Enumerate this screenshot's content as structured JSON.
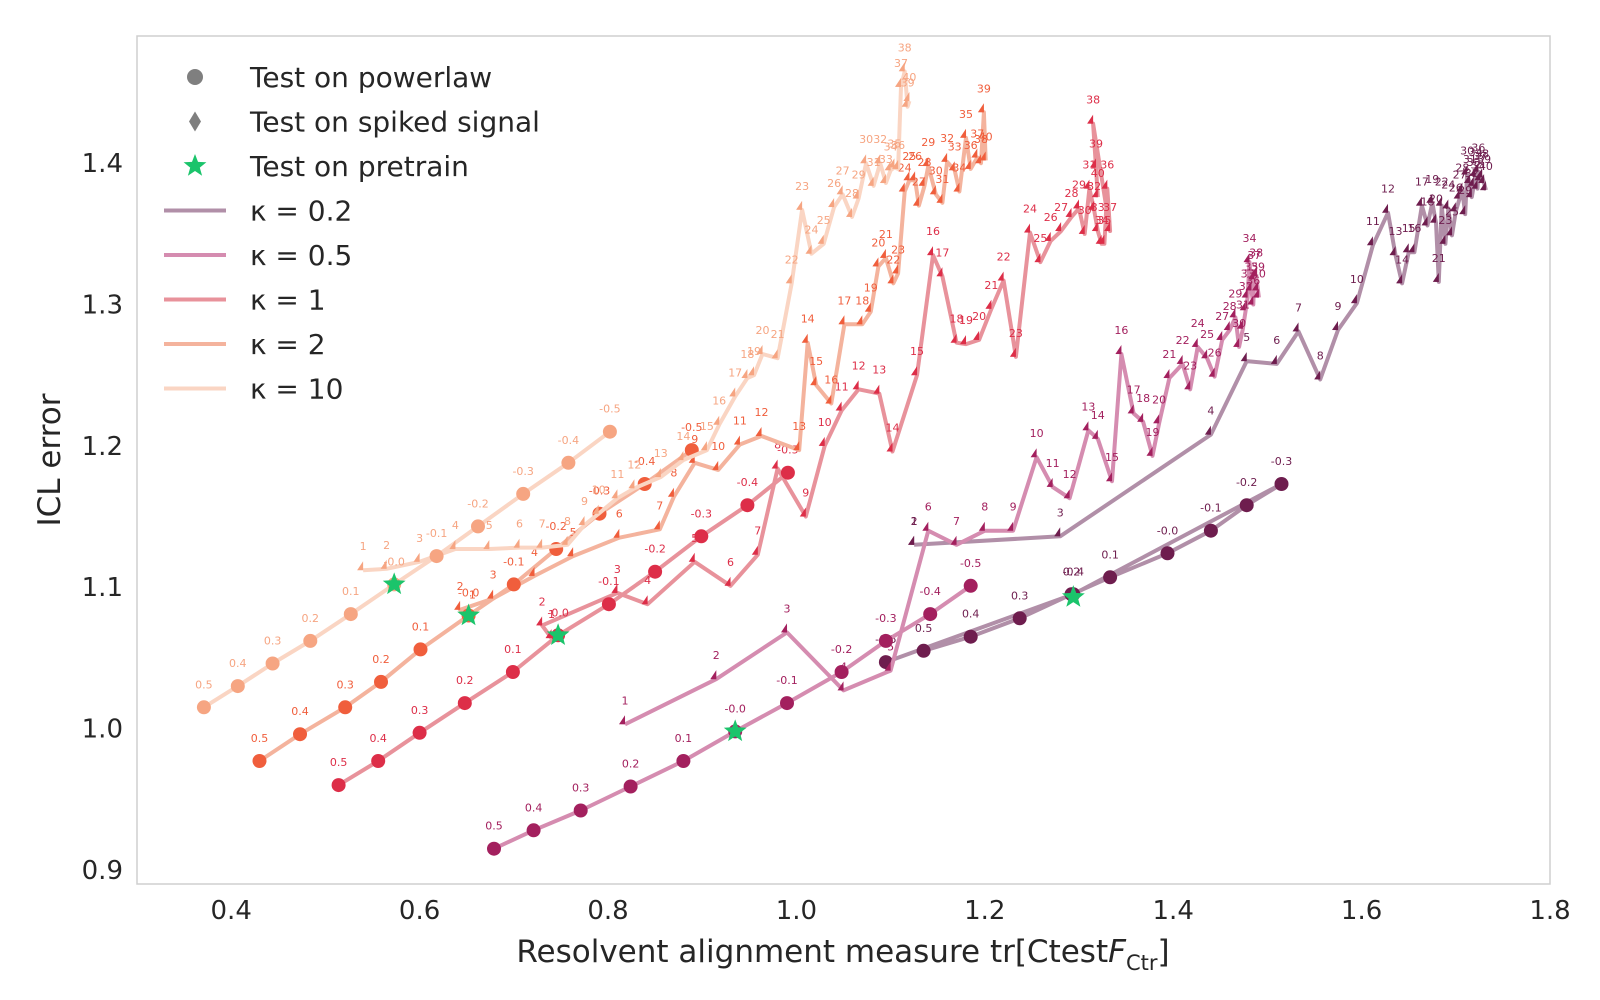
{
  "chart_data": {
    "type": "line",
    "title": "",
    "xlabel": "Resolvent alignment measure tr[Ctest",
    "xlabel_symbol": "F",
    "xlabel_subscript": "Ctr",
    "xlabel_close": "]",
    "ylabel": "ICL error",
    "xlim": [
      0.3,
      1.8
    ],
    "ylim": [
      0.89,
      1.49
    ],
    "xticks": [
      0.4,
      0.6,
      0.8,
      1.0,
      1.2,
      1.4,
      1.6,
      1.8
    ],
    "xtick_labels": [
      "0.4",
      "0.6",
      "0.8",
      "1.0",
      "1.2",
      "1.4",
      "1.6",
      "1.8"
    ],
    "yticks": [
      0.9,
      1.0,
      1.1,
      1.2,
      1.3,
      1.4
    ],
    "ytick_labels": [
      "0.9",
      "1.0",
      "1.1",
      "1.2",
      "1.3",
      "1.4"
    ],
    "grid": false,
    "legend_position": "top-left",
    "legend": [
      {
        "label": "Test on powerlaw",
        "marker": "circle",
        "color": "#7f7f7f"
      },
      {
        "label": "Test on spiked signal",
        "marker": "diamond",
        "color": "#7f7f7f"
      },
      {
        "label": "Test on pretrain",
        "marker": "star",
        "color": "#1bc46b"
      },
      {
        "label": "κ =  0.2",
        "marker": "line",
        "color": "#b18fa8"
      },
      {
        "label": "κ =  0.5",
        "marker": "line",
        "color": "#d58cb0"
      },
      {
        "label": "κ =  1",
        "marker": "line",
        "color": "#e8929b"
      },
      {
        "label": "κ =  2",
        "marker": "line",
        "color": "#f4b39d"
      },
      {
        "label": "κ =  10",
        "marker": "line",
        "color": "#fad5c3"
      }
    ],
    "series": [
      {
        "name": "κ =  0.2",
        "color": "#6e1d4e",
        "line_color": "#b18fa8",
        "label_color": "#6e1d4e",
        "powerlaw": {
          "labels": [
            "0.5",
            "0.4",
            "0.3",
            "0.2",
            "0.1",
            "-0.0",
            "-0.1",
            "-0.2",
            "-0.3",
            "-0.4",
            "-0.5"
          ],
          "x": [
            1.135,
            1.185,
            1.237,
            1.292,
            1.333,
            1.394,
            1.44,
            1.478,
            1.515,
            1.294,
            1.095
          ],
          "y": [
            1.055,
            1.065,
            1.078,
            1.095,
            1.107,
            1.124,
            1.14,
            1.158,
            1.173,
            1.095,
            1.047
          ]
        },
        "spiked": {
          "labels": [
            "1",
            "2",
            "3",
            "4",
            "5",
            "6",
            "7",
            "8",
            "9",
            "10",
            "11",
            "12",
            "13",
            "14",
            "15",
            "16",
            "17",
            "18",
            "19",
            "20",
            "21",
            "22",
            "23",
            "24",
            "25",
            "26",
            "27",
            "28",
            "29",
            "30",
            "31",
            "32",
            "33",
            "34",
            "35",
            "36",
            "37",
            "38",
            "39",
            "40"
          ],
          "x": [
            1.125,
            1.125,
            1.28,
            1.44,
            1.478,
            1.51,
            1.533,
            1.556,
            1.575,
            1.595,
            1.612,
            1.628,
            1.636,
            1.643,
            1.65,
            1.656,
            1.664,
            1.67,
            1.675,
            1.679,
            1.682,
            1.685,
            1.689,
            1.692,
            1.696,
            1.7,
            1.704,
            1.707,
            1.71,
            1.712,
            1.715,
            1.717,
            1.719,
            1.721,
            1.723,
            1.724,
            1.726,
            1.728,
            1.73,
            1.732
          ],
          "y": [
            1.13,
            1.13,
            1.136,
            1.208,
            1.26,
            1.258,
            1.281,
            1.247,
            1.282,
            1.301,
            1.342,
            1.365,
            1.335,
            1.315,
            1.337,
            1.337,
            1.37,
            1.356,
            1.372,
            1.358,
            1.316,
            1.37,
            1.343,
            1.368,
            1.349,
            1.366,
            1.375,
            1.38,
            1.364,
            1.392,
            1.386,
            1.376,
            1.384,
            1.391,
            1.382,
            1.394,
            1.388,
            1.39,
            1.386,
            1.381
          ]
        }
      },
      {
        "name": "κ =  0.5",
        "color": "#a3205e",
        "line_color": "#d58cb0",
        "label_color": "#a3205e",
        "powerlaw": {
          "labels": [
            "0.5",
            "0.4",
            "0.3",
            "0.2",
            "0.1",
            "-0.0",
            "-0.1",
            "-0.2",
            "-0.3",
            "-0.4",
            "-0.5"
          ],
          "x": [
            0.679,
            0.721,
            0.771,
            0.824,
            0.88,
            0.935,
            0.99,
            1.048,
            1.095,
            1.142,
            1.185
          ],
          "y": [
            0.915,
            0.928,
            0.942,
            0.959,
            0.977,
            0.998,
            1.018,
            1.04,
            1.062,
            1.081,
            1.101
          ]
        },
        "spiked": {
          "labels": [
            "1",
            "2",
            "3",
            "4",
            "5",
            "6",
            "7",
            "8",
            "9",
            "10",
            "11",
            "12",
            "13",
            "14",
            "15",
            "16",
            "17",
            "18",
            "19",
            "20",
            "21",
            "22",
            "23",
            "24",
            "25",
            "26",
            "27",
            "28",
            "29",
            "30",
            "31",
            "32",
            "33",
            "34",
            "35",
            "36",
            "37",
            "38",
            "39",
            "40"
          ],
          "x": [
            0.818,
            0.915,
            0.99,
            1.05,
            1.1,
            1.14,
            1.17,
            1.2,
            1.23,
            1.255,
            1.272,
            1.29,
            1.31,
            1.32,
            1.335,
            1.345,
            1.358,
            1.368,
            1.378,
            1.385,
            1.396,
            1.41,
            1.418,
            1.426,
            1.436,
            1.444,
            1.452,
            1.46,
            1.466,
            1.47,
            1.474,
            1.477,
            1.479,
            1.481,
            1.483,
            1.485,
            1.486,
            1.488,
            1.49,
            1.491
          ],
          "y": [
            1.003,
            1.035,
            1.068,
            1.027,
            1.041,
            1.14,
            1.13,
            1.14,
            1.14,
            1.192,
            1.171,
            1.163,
            1.211,
            1.205,
            1.175,
            1.265,
            1.223,
            1.217,
            1.193,
            1.216,
            1.248,
            1.258,
            1.24,
            1.27,
            1.262,
            1.249,
            1.275,
            1.282,
            1.291,
            1.27,
            1.283,
            1.296,
            1.305,
            1.33,
            1.31,
            1.3,
            1.318,
            1.32,
            1.31,
            1.305
          ]
        }
      },
      {
        "name": "κ =  1",
        "color": "#dd2e48",
        "line_color": "#e8929b",
        "label_color": "#dd2e48",
        "powerlaw": {
          "labels": [
            "0.5",
            "0.4",
            "0.3",
            "0.2",
            "0.1",
            "-0.0",
            "-0.1",
            "-0.2",
            "-0.3",
            "-0.4",
            "-0.5"
          ],
          "x": [
            0.514,
            0.556,
            0.6,
            0.648,
            0.699,
            0.747,
            0.801,
            0.85,
            0.899,
            0.948,
            0.991
          ],
          "y": [
            0.96,
            0.977,
            0.997,
            1.018,
            1.04,
            1.066,
            1.088,
            1.111,
            1.136,
            1.158,
            1.181
          ]
        },
        "spiked": {
          "labels": [
            "1",
            "2",
            "3",
            "4",
            "5",
            "6",
            "7",
            "8",
            "9",
            "10",
            "11",
            "12",
            "13",
            "14",
            "15",
            "16",
            "17",
            "18",
            "19",
            "20",
            "21",
            "22",
            "23",
            "24",
            "25",
            "26",
            "27",
            "28",
            "29",
            "30",
            "31",
            "32",
            "33",
            "34",
            "35",
            "36",
            "37",
            "38",
            "39",
            "40"
          ],
          "x": [
            0.74,
            0.73,
            0.81,
            0.842,
            0.892,
            0.93,
            0.959,
            0.98,
            1.01,
            1.03,
            1.048,
            1.066,
            1.088,
            1.102,
            1.128,
            1.145,
            1.155,
            1.17,
            1.18,
            1.194,
            1.207,
            1.22,
            1.233,
            1.248,
            1.259,
            1.27,
            1.281,
            1.292,
            1.3,
            1.306,
            1.311,
            1.316,
            1.32,
            1.324,
            1.327,
            1.33,
            1.333,
            1.315,
            1.318,
            1.32
          ],
          "y": [
            1.064,
            1.073,
            1.096,
            1.088,
            1.118,
            1.101,
            1.123,
            1.184,
            1.15,
            1.2,
            1.225,
            1.24,
            1.237,
            1.196,
            1.25,
            1.335,
            1.32,
            1.273,
            1.272,
            1.275,
            1.297,
            1.317,
            1.263,
            1.351,
            1.33,
            1.345,
            1.352,
            1.362,
            1.368,
            1.35,
            1.382,
            1.367,
            1.352,
            1.343,
            1.343,
            1.382,
            1.352,
            1.428,
            1.397,
            1.376
          ]
        }
      },
      {
        "name": "κ =  2",
        "color": "#f05e3c",
        "line_color": "#f4b39d",
        "label_color": "#f05e3c",
        "powerlaw": {
          "labels": [
            "0.5",
            "0.4",
            "0.3",
            "0.2",
            "0.1",
            "-0.0",
            "-0.1",
            "-0.2",
            "-0.3",
            "-0.4",
            "-0.5"
          ],
          "x": [
            0.43,
            0.473,
            0.521,
            0.559,
            0.601,
            0.652,
            0.7,
            0.745,
            0.791,
            0.839,
            0.889
          ],
          "y": [
            0.977,
            0.996,
            1.015,
            1.033,
            1.056,
            1.08,
            1.102,
            1.127,
            1.152,
            1.173,
            1.197
          ]
        },
        "spiked": {
          "labels": [
            "1",
            "2",
            "3",
            "4",
            "5",
            "6",
            "7",
            "8",
            "9",
            "10",
            "11",
            "12",
            "13",
            "14",
            "15",
            "16",
            "17",
            "18",
            "19",
            "20",
            "21",
            "22",
            "23",
            "24",
            "25",
            "26",
            "27",
            "28",
            "29",
            "30",
            "31",
            "32",
            "33",
            "34",
            "35",
            "36",
            "37",
            "38",
            "39",
            "40"
          ],
          "x": [
            0.656,
            0.643,
            0.678,
            0.722,
            0.763,
            0.812,
            0.855,
            0.87,
            0.892,
            0.917,
            0.94,
            0.963,
            1.003,
            1.012,
            1.021,
            1.037,
            1.051,
            1.07,
            1.079,
            1.087,
            1.095,
            1.103,
            1.108,
            1.115,
            1.12,
            1.126,
            1.13,
            1.136,
            1.14,
            1.148,
            1.155,
            1.16,
            1.168,
            1.173,
            1.18,
            1.185,
            1.192,
            1.196,
            1.199,
            1.201
          ],
          "y": [
            1.078,
            1.084,
            1.092,
            1.108,
            1.122,
            1.135,
            1.141,
            1.164,
            1.188,
            1.183,
            1.201,
            1.207,
            1.197,
            1.273,
            1.243,
            1.23,
            1.286,
            1.286,
            1.295,
            1.327,
            1.333,
            1.315,
            1.322,
            1.38,
            1.388,
            1.388,
            1.37,
            1.384,
            1.398,
            1.378,
            1.372,
            1.401,
            1.395,
            1.38,
            1.418,
            1.396,
            1.404,
            1.4,
            1.436,
            1.402
          ]
        }
      },
      {
        "name": "κ =  10",
        "color": "#f6a582",
        "line_color": "#fad5c3",
        "label_color": "#f6a582",
        "powerlaw": {
          "labels": [
            "0.5",
            "0.4",
            "0.3",
            "0.2",
            "0.1",
            "-0.0",
            "-0.1",
            "-0.2",
            "-0.3",
            "-0.4",
            "-0.5"
          ],
          "x": [
            0.371,
            0.407,
            0.444,
            0.484,
            0.527,
            0.573,
            0.618,
            0.662,
            0.71,
            0.758,
            0.802
          ],
          "y": [
            1.015,
            1.03,
            1.046,
            1.062,
            1.081,
            1.102,
            1.122,
            1.143,
            1.166,
            1.188,
            1.21
          ]
        },
        "spiked": {
          "labels": [
            "1",
            "2",
            "3",
            "4",
            "5",
            "6",
            "7",
            "8",
            "9",
            "10",
            "11",
            "12",
            "13",
            "14",
            "15",
            "16",
            "17",
            "18",
            "19",
            "20",
            "21",
            "22",
            "23",
            "24",
            "25",
            "26",
            "27",
            "28",
            "29",
            "30",
            "31",
            "32",
            "33",
            "34",
            "35",
            "36",
            "37",
            "38",
            "39",
            "40"
          ],
          "x": [
            0.54,
            0.565,
            0.6,
            0.638,
            0.674,
            0.706,
            0.73,
            0.757,
            0.775,
            0.79,
            0.81,
            0.828,
            0.856,
            0.88,
            0.905,
            0.918,
            0.935,
            0.948,
            0.955,
            0.964,
            0.98,
            0.995,
            1.006,
            1.016,
            1.029,
            1.04,
            1.049,
            1.059,
            1.066,
            1.074,
            1.082,
            1.089,
            1.095,
            1.1,
            1.104,
            1.108,
            1.111,
            1.115,
            1.118,
            1.12
          ],
          "y": [
            1.112,
            1.113,
            1.118,
            1.127,
            1.127,
            1.128,
            1.128,
            1.13,
            1.144,
            1.152,
            1.163,
            1.17,
            1.178,
            1.19,
            1.197,
            1.215,
            1.235,
            1.248,
            1.25,
            1.265,
            1.262,
            1.315,
            1.367,
            1.336,
            1.343,
            1.369,
            1.378,
            1.362,
            1.375,
            1.4,
            1.384,
            1.4,
            1.386,
            1.395,
            1.397,
            1.396,
            1.454,
            1.465,
            1.44,
            1.444
          ]
        }
      }
    ],
    "pretrain": {
      "color": "#1bc46b",
      "points": [
        {
          "series": "κ =  10",
          "x": 0.573,
          "y": 1.102
        },
        {
          "series": "κ =  2",
          "x": 0.652,
          "y": 1.08
        },
        {
          "series": "κ =  1",
          "x": 0.747,
          "y": 1.066
        },
        {
          "series": "κ =  0.5",
          "x": 0.935,
          "y": 0.998
        },
        {
          "series": "κ =  0.2",
          "x": 1.294,
          "y": 1.093
        }
      ]
    }
  }
}
